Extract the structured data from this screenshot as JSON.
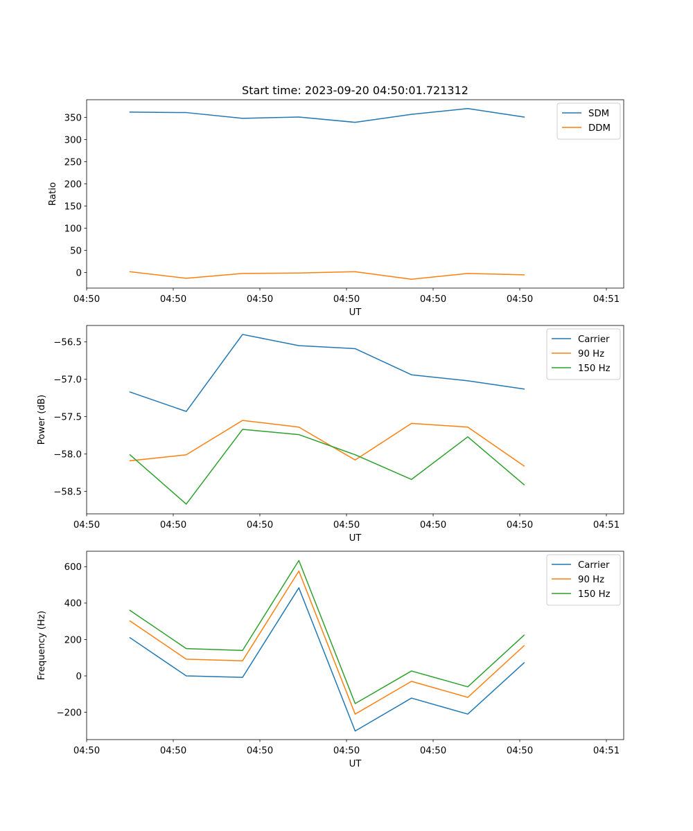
{
  "figure": {
    "title": "Start time: 2023-09-20 04:50:01.721312"
  },
  "chart_data": [
    {
      "type": "line",
      "xlabel": "UT",
      "ylabel": "Ratio",
      "xlim": [
        0,
        6.2
      ],
      "xticks": [
        0,
        1,
        2,
        3,
        4,
        5,
        6
      ],
      "xtick_labels": [
        "04:50",
        "04:50",
        "04:50",
        "04:50",
        "04:50",
        "04:50",
        "04:51"
      ],
      "ylim": [
        -35,
        390
      ],
      "yticks": [
        0,
        50,
        100,
        150,
        200,
        250,
        300,
        350
      ],
      "ytick_labels": [
        "0",
        "50",
        "100",
        "150",
        "200",
        "250",
        "300",
        "350"
      ],
      "legend": "top-right",
      "x": [
        0.5,
        1.15,
        1.8,
        2.45,
        3.1,
        3.75,
        4.4,
        5.05
      ],
      "series": [
        {
          "name": "SDM",
          "color": "#1f77b4",
          "values": [
            362,
            361,
            348,
            351,
            339,
            357,
            370,
            351
          ]
        },
        {
          "name": "DDM",
          "color": "#ff7f0e",
          "values": [
            2,
            -13,
            -2,
            -1,
            2,
            -15,
            -2,
            -5
          ]
        }
      ]
    },
    {
      "type": "line",
      "xlabel": "UT",
      "ylabel": "Power (dB)",
      "xlim": [
        0,
        6.2
      ],
      "xticks": [
        0,
        1,
        2,
        3,
        4,
        5,
        6
      ],
      "xtick_labels": [
        "04:50",
        "04:50",
        "04:50",
        "04:50",
        "04:50",
        "04:50",
        "04:51"
      ],
      "ylim": [
        -58.8,
        -56.28
      ],
      "yticks": [
        -58.5,
        -58.0,
        -57.5,
        -57.0,
        -56.5
      ],
      "ytick_labels": [
        "−58.5",
        "−58.0",
        "−57.5",
        "−57.0",
        "−56.5"
      ],
      "legend": "top-right",
      "x": [
        0.5,
        1.15,
        1.8,
        2.45,
        3.1,
        3.75,
        4.4,
        5.05
      ],
      "series": [
        {
          "name": "Carrier",
          "color": "#1f77b4",
          "values": [
            -57.17,
            -57.43,
            -56.4,
            -56.55,
            -56.59,
            -56.94,
            -57.02,
            -57.13
          ]
        },
        {
          "name": "90 Hz",
          "color": "#ff7f0e",
          "values": [
            -58.09,
            -58.01,
            -57.55,
            -57.64,
            -58.08,
            -57.59,
            -57.64,
            -58.16
          ]
        },
        {
          "name": "150 Hz",
          "color": "#2ca02c",
          "values": [
            -58.01,
            -58.67,
            -57.67,
            -57.74,
            -58.01,
            -58.34,
            -57.77,
            -58.41
          ]
        }
      ]
    },
    {
      "type": "line",
      "xlabel": "UT",
      "ylabel": "Frequency (Hz)",
      "xlim": [
        0,
        6.2
      ],
      "xticks": [
        0,
        1,
        2,
        3,
        4,
        5,
        6
      ],
      "xtick_labels": [
        "04:50",
        "04:50",
        "04:50",
        "04:50",
        "04:50",
        "04:50",
        "04:51"
      ],
      "ylim": [
        -350,
        685
      ],
      "yticks": [
        -200,
        0,
        200,
        400,
        600
      ],
      "ytick_labels": [
        "−200",
        "0",
        "200",
        "400",
        "600"
      ],
      "legend": "top-right",
      "x": [
        0.5,
        1.15,
        1.8,
        2.45,
        3.1,
        3.75,
        4.4,
        5.05
      ],
      "series": [
        {
          "name": "Carrier",
          "color": "#1f77b4",
          "values": [
            210,
            0,
            -8,
            484,
            -303,
            -122,
            -210,
            72
          ]
        },
        {
          "name": "90 Hz",
          "color": "#ff7f0e",
          "values": [
            302,
            92,
            83,
            576,
            -210,
            -30,
            -118,
            166
          ]
        },
        {
          "name": "150 Hz",
          "color": "#2ca02c",
          "values": [
            360,
            150,
            140,
            634,
            -152,
            27,
            -60,
            224
          ]
        }
      ]
    }
  ]
}
